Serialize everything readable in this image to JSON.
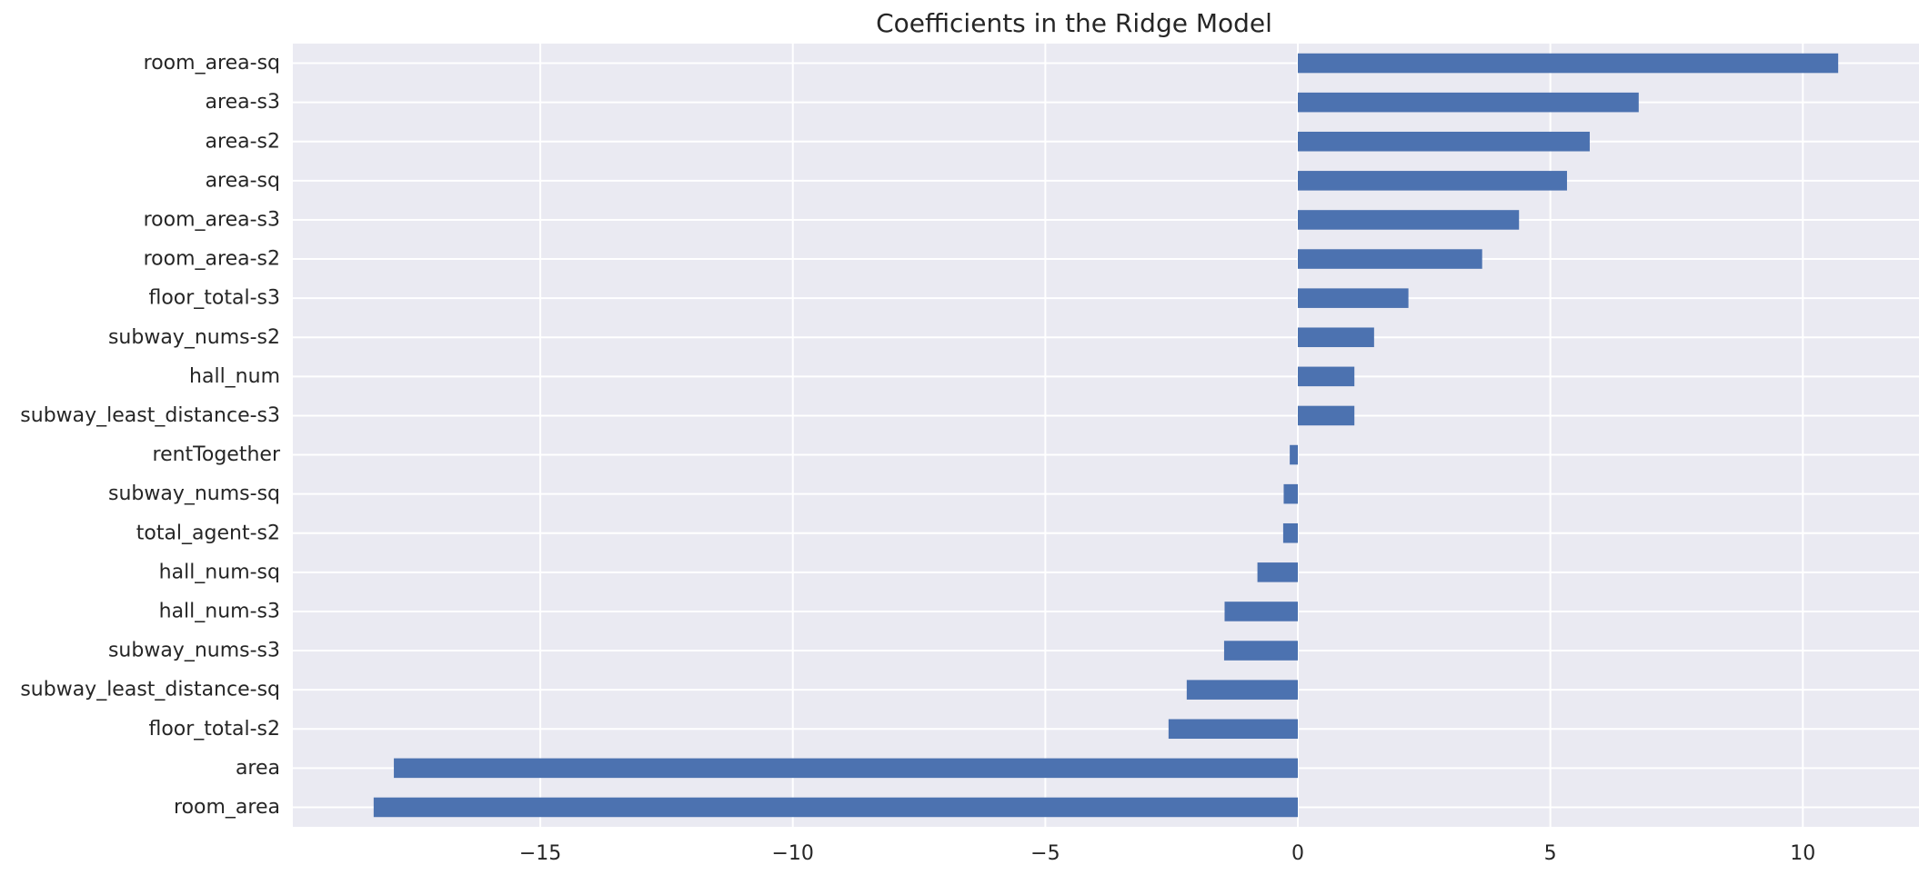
{
  "chart_data": {
    "type": "bar",
    "orientation": "horizontal",
    "title": "Coefficients in the Ridge Model",
    "xlabel": "",
    "ylabel": "",
    "categories": [
      "room_area-sq",
      "area-s3",
      "area-s2",
      "area-sq",
      "room_area-s3",
      "room_area-s2",
      "floor_total-s3",
      "subway_nums-s2",
      "hall_num",
      "subway_least_distance-s3",
      "rentTogether",
      "subway_nums-sq",
      "total_agent-s2",
      "hall_num-sq",
      "hall_num-s3",
      "subway_nums-s3",
      "subway_least_distance-sq",
      "floor_total-s2",
      "area",
      "room_area"
    ],
    "values": [
      10.7,
      6.75,
      5.78,
      5.33,
      4.38,
      3.65,
      2.19,
      1.51,
      1.12,
      1.12,
      -0.16,
      -0.28,
      -0.29,
      -0.8,
      -1.45,
      -1.46,
      -2.2,
      -2.56,
      -17.9,
      -18.3
    ],
    "xlim": [
      -19.9,
      12.3
    ],
    "xticks": [
      -15,
      -10,
      -5,
      0,
      5,
      10
    ],
    "xtick_labels": [
      "−15",
      "−10",
      "−5",
      "0",
      "5",
      "10"
    ],
    "grid": true,
    "legend": "none",
    "colors": {
      "bar": "#4c72b0",
      "background": "#eaeaf2",
      "grid": "#ffffff",
      "text": "#262626"
    }
  }
}
